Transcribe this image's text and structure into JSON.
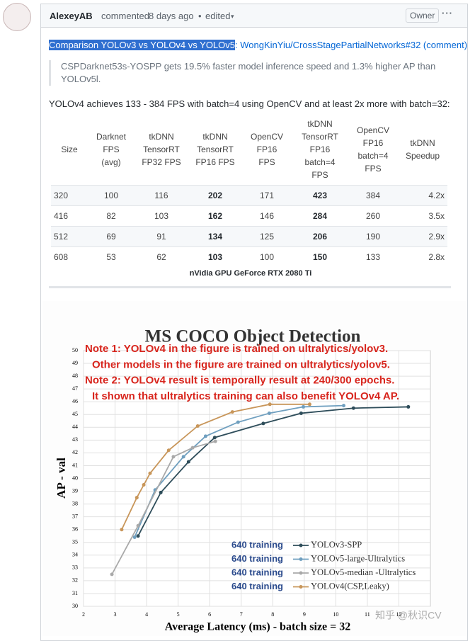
{
  "header": {
    "user": "AlexeyAB",
    "action": "commented",
    "time": "8 days ago",
    "bullet": "•",
    "edited": "edited",
    "edited_caret": "▾",
    "badge": "Owner",
    "menu": "···"
  },
  "link": {
    "highlighted": "Comparison YOLOv3 vs YOLOv4 vs YOLOv5",
    "rest": ": WongKinYiu/CrossStagePartialNetworks#32 (comment)"
  },
  "quote": "CSPDarknet53s-YOSPP gets 19.5% faster model inference speed and 1.3% higher AP than YOLOv5l.",
  "paragraph": "YOLOv4 achieves 133 - 384 FPS with batch=4 using OpenCV and at least 2x more with batch=32:",
  "table": {
    "headers": [
      "Size",
      "Darknet\nFPS\n(avg)",
      "tkDNN\nTensorRT\nFP32 FPS",
      "tkDNN\nTensorRT\nFP16 FPS",
      "OpenCV\nFP16\nFPS",
      "tkDNN\nTensorRT\nFP16\nbatch=4\nFPS",
      "OpenCV\nFP16\nbatch=4\nFPS",
      "tkDNN\nSpeedup"
    ],
    "bold_columns": [
      3,
      5
    ],
    "rows": [
      [
        "320",
        "100",
        "116",
        "202",
        "171",
        "423",
        "384",
        "4.2x"
      ],
      [
        "416",
        "82",
        "103",
        "162",
        "146",
        "284",
        "260",
        "3.5x"
      ],
      [
        "512",
        "69",
        "91",
        "134",
        "125",
        "206",
        "190",
        "2.9x"
      ],
      [
        "608",
        "53",
        "62",
        "103",
        "100",
        "150",
        "133",
        "2.8x"
      ]
    ],
    "caption": "nVidia GPU GeForce RTX 2080 Ti"
  },
  "chart_data": {
    "type": "line",
    "title": "MS COCO Object Detection",
    "notes": [
      "Note 1: YOLOv4 in the figure is trained on ultralytics/yolov3.",
      "Other models in the figure are trained on ultralytics/yolov5.",
      "Note 2: YOLOv4 result is temporally result at 240/300 epochs.",
      "It shown that ultralytics training can also benefit YOLOv4 AP."
    ],
    "xlabel": "Average Latency (ms) - batch size = 32",
    "ylabel": "AP - val",
    "xlim": [
      2,
      13
    ],
    "xticks": [
      2,
      3,
      4,
      5,
      6,
      7,
      8,
      9,
      10,
      11,
      12
    ],
    "ylim": [
      30,
      50
    ],
    "yticks": [
      30,
      31,
      32,
      33,
      34,
      35,
      36,
      37,
      38,
      39,
      40,
      41,
      42,
      43,
      44,
      45,
      46,
      47,
      48,
      49,
      50
    ],
    "grid": true,
    "legend": "lower right",
    "watermark": "知乎 @秋识CV",
    "series": [
      {
        "prefix": "640 training",
        "name": "YOLOv3-SPP",
        "color": "#2e4d5a",
        "x": [
          3.73,
          4.45,
          5.33,
          6.16,
          7.7,
          8.9,
          10.56,
          12.3
        ],
        "values": [
          35.5,
          38.9,
          41.3,
          43.2,
          44.3,
          45.1,
          45.5,
          45.6
        ]
      },
      {
        "prefix": "640 training",
        "name": "YOLOv5-large-Ultralytics",
        "color": "#6f9fbf",
        "x": [
          3.62,
          4.27,
          5.17,
          5.87,
          6.9,
          7.89,
          8.97,
          10.25
        ],
        "values": [
          35.4,
          39.1,
          41.7,
          43.3,
          44.4,
          45.1,
          45.6,
          45.7
        ]
      },
      {
        "prefix": "640 training",
        "name": "YOLOv5-median -Ultralytics",
        "color": "#a9a9a9",
        "x": [
          2.9,
          3.73,
          4.85,
          5.46,
          6.18
        ],
        "values": [
          32.5,
          36.3,
          41.7,
          42.4,
          42.9
        ]
      },
      {
        "prefix": "640 training",
        "name": "YOLOv4(CSP,Leaky)",
        "color": "#c8965a",
        "x": [
          3.21,
          3.69,
          3.91,
          4.11,
          4.7,
          5.62,
          6.72,
          7.91,
          9.17
        ],
        "values": [
          36.0,
          38.5,
          39.5,
          40.4,
          42.2,
          44.1,
          45.2,
          45.8,
          45.8
        ]
      }
    ]
  }
}
